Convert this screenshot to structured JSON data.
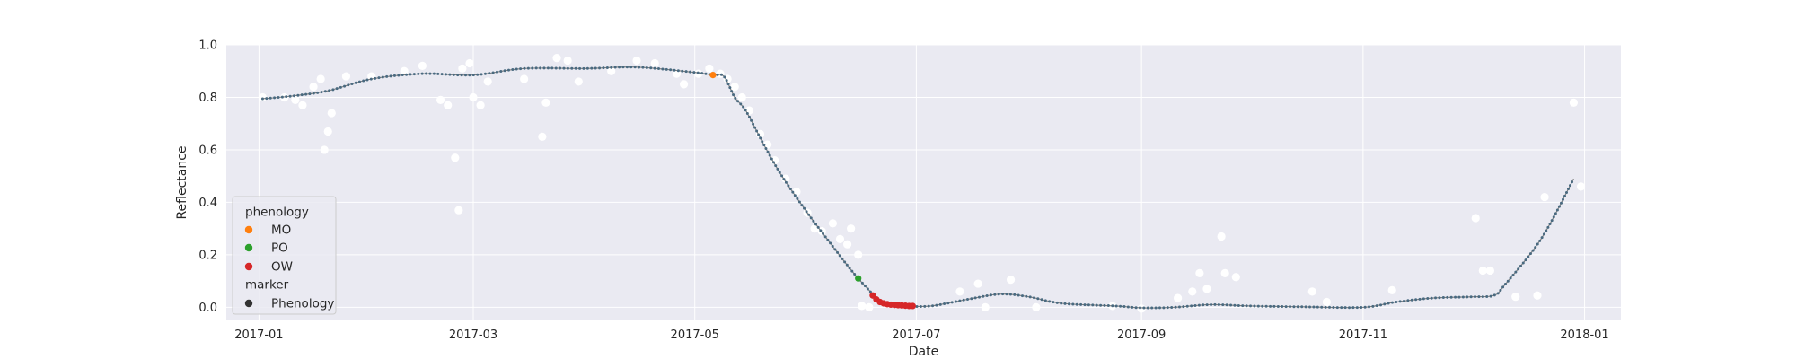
{
  "chart_data": {
    "type": "scatter",
    "title": "",
    "xlabel": "Date",
    "ylabel": "Reflectance",
    "xlim": [
      "2016-12-23",
      "2018-01-11"
    ],
    "ylim": [
      -0.05,
      1.0
    ],
    "x_ticks": [
      "2017-01",
      "2017-03",
      "2017-05",
      "2017-07",
      "2017-09",
      "2017-11",
      "2018-01"
    ],
    "y_ticks": [
      "0.0",
      "0.2",
      "0.4",
      "0.6",
      "0.8",
      "1.0"
    ],
    "grid": true,
    "legend_placement": "lower-left",
    "legend": {
      "phenology_title": "phenology",
      "marker_title": "marker",
      "entries": [
        {
          "label": "MO",
          "color": "#ff7f0e"
        },
        {
          "label": "PO",
          "color": "#2ca02c"
        },
        {
          "label": "OW",
          "color": "#d62728"
        },
        {
          "label": "Phenology",
          "color": "#333333"
        }
      ]
    },
    "colors": {
      "background": "#eaeaf2",
      "grid": "#ffffff",
      "curve": "#4a6a80",
      "observations": "#ffffff"
    },
    "series": [
      {
        "kind": "smoothed_curve",
        "points": [
          [
            "2017-01-02",
            0.795
          ],
          [
            "2017-01-10",
            0.805
          ],
          [
            "2017-01-20",
            0.825
          ],
          [
            "2017-02-01",
            0.87
          ],
          [
            "2017-02-15",
            0.89
          ],
          [
            "2017-03-01",
            0.885
          ],
          [
            "2017-03-15",
            0.91
          ],
          [
            "2017-04-01",
            0.91
          ],
          [
            "2017-04-15",
            0.915
          ],
          [
            "2017-05-01",
            0.895
          ],
          [
            "2017-05-06",
            0.885
          ],
          [
            "2017-05-09",
            0.88
          ],
          [
            "2017-05-12",
            0.8
          ],
          [
            "2017-05-15",
            0.75
          ],
          [
            "2017-05-20",
            0.62
          ],
          [
            "2017-05-25",
            0.5
          ],
          [
            "2017-06-01",
            0.36
          ],
          [
            "2017-06-07",
            0.25
          ],
          [
            "2017-06-12",
            0.16
          ],
          [
            "2017-06-15",
            0.11
          ],
          [
            "2017-06-19",
            0.05
          ],
          [
            "2017-06-21",
            0.02
          ],
          [
            "2017-06-24",
            0.01
          ],
          [
            "2017-06-28",
            0.005
          ],
          [
            "2017-07-05",
            0.005
          ],
          [
            "2017-07-15",
            0.03
          ],
          [
            "2017-07-24",
            0.05
          ],
          [
            "2017-08-01",
            0.04
          ],
          [
            "2017-08-10",
            0.015
          ],
          [
            "2017-08-25",
            0.005
          ],
          [
            "2017-09-01",
            -0.002
          ],
          [
            "2017-09-10",
            0.0
          ],
          [
            "2017-09-20",
            0.01
          ],
          [
            "2017-10-01",
            0.005
          ],
          [
            "2017-10-15",
            0.002
          ],
          [
            "2017-11-01",
            0.0
          ],
          [
            "2017-11-10",
            0.02
          ],
          [
            "2017-11-20",
            0.035
          ],
          [
            "2017-12-01",
            0.04
          ],
          [
            "2017-12-07",
            0.045
          ],
          [
            "2017-12-10",
            0.085
          ],
          [
            "2017-12-20",
            0.26
          ],
          [
            "2017-12-29",
            0.49
          ]
        ]
      },
      {
        "kind": "observations",
        "points": [
          [
            "2017-01-02",
            0.8
          ],
          [
            "2017-01-08",
            0.8
          ],
          [
            "2017-01-11",
            0.79
          ],
          [
            "2017-01-13",
            0.77
          ],
          [
            "2017-01-16",
            0.84
          ],
          [
            "2017-01-18",
            0.87
          ],
          [
            "2017-01-19",
            0.6
          ],
          [
            "2017-01-20",
            0.67
          ],
          [
            "2017-01-21",
            0.74
          ],
          [
            "2017-01-25",
            0.88
          ],
          [
            "2017-02-01",
            0.88
          ],
          [
            "2017-02-10",
            0.9
          ],
          [
            "2017-02-15",
            0.92
          ],
          [
            "2017-02-20",
            0.79
          ],
          [
            "2017-02-22",
            0.77
          ],
          [
            "2017-02-24",
            0.57
          ],
          [
            "2017-02-25",
            0.37
          ],
          [
            "2017-02-26",
            0.91
          ],
          [
            "2017-02-28",
            0.93
          ],
          [
            "2017-03-01",
            0.8
          ],
          [
            "2017-03-03",
            0.77
          ],
          [
            "2017-03-05",
            0.86
          ],
          [
            "2017-03-15",
            0.87
          ],
          [
            "2017-03-20",
            0.65
          ],
          [
            "2017-03-21",
            0.78
          ],
          [
            "2017-03-24",
            0.95
          ],
          [
            "2017-03-27",
            0.94
          ],
          [
            "2017-03-30",
            0.86
          ],
          [
            "2017-04-08",
            0.9
          ],
          [
            "2017-04-15",
            0.94
          ],
          [
            "2017-04-20",
            0.93
          ],
          [
            "2017-04-26",
            0.89
          ],
          [
            "2017-04-28",
            0.85
          ],
          [
            "2017-05-02",
            0.89
          ],
          [
            "2017-05-05",
            0.91
          ],
          [
            "2017-05-08",
            0.89
          ],
          [
            "2017-05-10",
            0.87
          ],
          [
            "2017-05-12",
            0.84
          ],
          [
            "2017-05-14",
            0.8
          ],
          [
            "2017-05-16",
            0.75
          ],
          [
            "2017-05-19",
            0.66
          ],
          [
            "2017-05-21",
            0.62
          ],
          [
            "2017-05-23",
            0.56
          ],
          [
            "2017-05-26",
            0.49
          ],
          [
            "2017-05-29",
            0.44
          ],
          [
            "2017-06-01",
            0.36
          ],
          [
            "2017-06-03",
            0.3
          ],
          [
            "2017-06-05",
            0.29
          ],
          [
            "2017-06-08",
            0.32
          ],
          [
            "2017-06-10",
            0.26
          ],
          [
            "2017-06-12",
            0.24
          ],
          [
            "2017-06-13",
            0.3
          ],
          [
            "2017-06-15",
            0.2
          ],
          [
            "2017-06-16",
            0.005
          ],
          [
            "2017-06-18",
            0.0
          ],
          [
            "2017-07-13",
            0.06
          ],
          [
            "2017-07-18",
            0.09
          ],
          [
            "2017-07-20",
            0.0
          ],
          [
            "2017-07-27",
            0.105
          ],
          [
            "2017-08-03",
            0.0
          ],
          [
            "2017-08-24",
            0.005
          ],
          [
            "2017-09-01",
            -0.005
          ],
          [
            "2017-09-11",
            0.035
          ],
          [
            "2017-09-15",
            0.06
          ],
          [
            "2017-09-17",
            0.13
          ],
          [
            "2017-09-19",
            0.07
          ],
          [
            "2017-09-23",
            0.27
          ],
          [
            "2017-09-24",
            0.13
          ],
          [
            "2017-09-27",
            0.115
          ],
          [
            "2017-10-18",
            0.06
          ],
          [
            "2017-10-22",
            0.02
          ],
          [
            "2017-11-09",
            0.065
          ],
          [
            "2017-12-02",
            0.34
          ],
          [
            "2017-12-04",
            0.14
          ],
          [
            "2017-12-06",
            0.14
          ],
          [
            "2017-12-13",
            0.04
          ],
          [
            "2017-12-19",
            0.045
          ],
          [
            "2017-12-21",
            0.42
          ],
          [
            "2017-12-29",
            0.78
          ],
          [
            "2017-12-31",
            0.46
          ]
        ]
      },
      {
        "kind": "phenology",
        "name": "MO",
        "points": [
          [
            "2017-05-06",
            0.885
          ]
        ]
      },
      {
        "kind": "phenology",
        "name": "PO",
        "points": [
          [
            "2017-06-15",
            0.11
          ]
        ]
      },
      {
        "kind": "phenology",
        "name": "OW",
        "points": [
          [
            "2017-06-19",
            0.045
          ],
          [
            "2017-06-20",
            0.03
          ],
          [
            "2017-06-21",
            0.02
          ],
          [
            "2017-06-22",
            0.015
          ],
          [
            "2017-06-23",
            0.012
          ],
          [
            "2017-06-24",
            0.01
          ],
          [
            "2017-06-25",
            0.009
          ],
          [
            "2017-06-26",
            0.008
          ],
          [
            "2017-06-27",
            0.007
          ],
          [
            "2017-06-28",
            0.006
          ],
          [
            "2017-06-29",
            0.005
          ],
          [
            "2017-06-30",
            0.005
          ]
        ]
      }
    ]
  }
}
